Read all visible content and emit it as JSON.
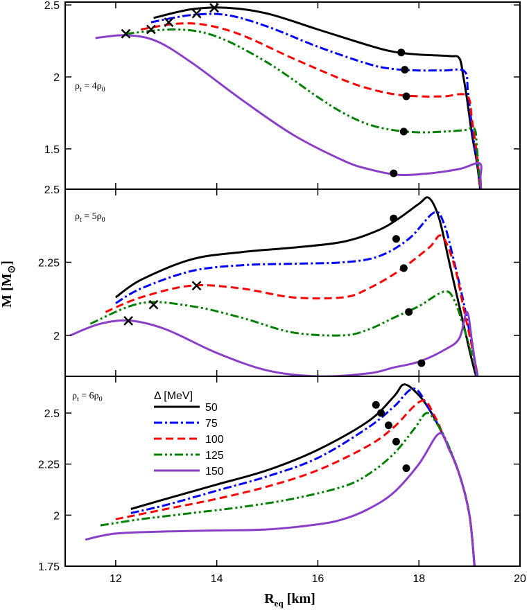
{
  "chart_data": {
    "type": "line",
    "title": "",
    "xlabel": "R",
    "xlabel_sub": "eq",
    "xlabel_unit": " [km]",
    "ylabel": "M [M",
    "ylabel_sub": "⊙",
    "ylabel_close": "]",
    "xlim": [
      11,
      20
    ],
    "xticks": [
      12,
      14,
      16,
      18,
      20
    ],
    "legend": {
      "title": "Δ [MeV]",
      "position": "top-left, bottom panel",
      "entries": [
        {
          "label": "50",
          "color": "#000000",
          "dash": "solid"
        },
        {
          "label": "75",
          "color": "#0000ff",
          "dash": "dash-dot"
        },
        {
          "label": "100",
          "color": "#ff0000",
          "dash": "dashed"
        },
        {
          "label": "125",
          "color": "#008000",
          "dash": "dash-dot-dot"
        },
        {
          "label": "150",
          "color": "#8b3fc8",
          "dash": "solid"
        }
      ]
    },
    "panels": [
      {
        "annotation": {
          "rho": "ρ",
          "sub_t": "t",
          "eq": " = 4ρ",
          "sub_0": "0"
        },
        "ylim": [
          1.22,
          2.52
        ],
        "yticks": [
          {
            "v": 1.5,
            "label": "1.5"
          },
          {
            "v": 2.0,
            "label": "2"
          },
          {
            "v": 2.5,
            "label": "2.5"
          }
        ],
        "series": [
          {
            "name": "50",
            "color": "#000000",
            "dash": "solid",
            "x": [
              12.75,
              13.5,
              14.2,
              15,
              16,
              17,
              17.5,
              18,
              18.6,
              18.8,
              18.88,
              18.95,
              19.05,
              19.15,
              19.22
            ],
            "y": [
              2.41,
              2.47,
              2.48,
              2.44,
              2.33,
              2.22,
              2.175,
              2.155,
              2.145,
              2.13,
              2.0,
              1.85,
              1.6,
              1.4,
              1.2
            ]
          },
          {
            "name": "75",
            "color": "#0000ff",
            "dash": "dash-dot",
            "x": [
              12.7,
              13.5,
              14.2,
              15,
              16,
              17,
              17.5,
              18,
              18.5,
              18.9,
              18.97,
              19.05,
              19.15,
              19.22
            ],
            "y": [
              2.38,
              2.43,
              2.43,
              2.35,
              2.21,
              2.09,
              2.055,
              2.045,
              2.045,
              2.04,
              1.9,
              1.65,
              1.4,
              1.2
            ]
          },
          {
            "name": "100",
            "color": "#ff0000",
            "dash": "dashed",
            "x": [
              12.5,
              13.2,
              13.8,
              14.5,
              15.5,
              16.5,
              17,
              17.5,
              18,
              18.5,
              18.95,
              19.05,
              19.15,
              19.22
            ],
            "y": [
              2.33,
              2.37,
              2.36,
              2.29,
              2.13,
              1.98,
              1.92,
              1.88,
              1.865,
              1.865,
              1.87,
              1.7,
              1.45,
              1.2
            ]
          },
          {
            "name": "125",
            "color": "#008000",
            "dash": "dash-dot-dot",
            "x": [
              12.2,
              13.2,
              14,
              15,
              16,
              16.5,
              17,
              17.5,
              18,
              18.5,
              18.9,
              19.1,
              19.15,
              19.22
            ],
            "y": [
              2.3,
              2.33,
              2.28,
              2.1,
              1.86,
              1.75,
              1.67,
              1.63,
              1.615,
              1.62,
              1.63,
              1.64,
              1.5,
              1.2
            ]
          },
          {
            "name": "150",
            "color": "#8b3fc8",
            "dash": "solid",
            "x": [
              11.6,
              12.2,
              12.8,
              13.5,
              14.5,
              15.5,
              16.5,
              17,
              17.6,
              18.2,
              18.8,
              19.2,
              19.22,
              19.23
            ],
            "y": [
              2.27,
              2.29,
              2.25,
              2.1,
              1.84,
              1.6,
              1.42,
              1.36,
              1.32,
              1.33,
              1.36,
              1.4,
              1.3,
              1.2
            ]
          }
        ],
        "crosses": [
          {
            "x": 12.2,
            "y": 2.3
          },
          {
            "x": 12.7,
            "y": 2.33
          },
          {
            "x": 13.05,
            "y": 2.38
          },
          {
            "x": 13.6,
            "y": 2.44
          },
          {
            "x": 13.95,
            "y": 2.48
          }
        ],
        "dots": [
          {
            "x": 17.65,
            "y": 2.17
          },
          {
            "x": 17.72,
            "y": 2.05
          },
          {
            "x": 17.75,
            "y": 1.865
          },
          {
            "x": 17.7,
            "y": 1.62
          },
          {
            "x": 17.5,
            "y": 1.33
          }
        ]
      },
      {
        "annotation": {
          "rho": "ρ",
          "sub_t": "t",
          "eq": " = 5ρ",
          "sub_0": "0"
        },
        "ylim": [
          1.86,
          2.5
        ],
        "yticks": [
          {
            "v": 2.0,
            "label": "2"
          },
          {
            "v": 2.25,
            "label": "2.25"
          },
          {
            "v": 2.5,
            "label": "2.5"
          }
        ],
        "series": [
          {
            "name": "50",
            "color": "#000000",
            "dash": "solid",
            "x": [
              12.0,
              12.5,
              13.5,
              14.5,
              15.5,
              16.5,
              17.2,
              17.6,
              18.0,
              18.2,
              18.4,
              18.6,
              18.8,
              19.0,
              19.1,
              19.2
            ],
            "y": [
              2.13,
              2.19,
              2.26,
              2.285,
              2.3,
              2.32,
              2.36,
              2.4,
              2.45,
              2.47,
              2.4,
              2.25,
              2.1,
              1.95,
              1.88,
              1.82
            ]
          },
          {
            "name": "75",
            "color": "#0000ff",
            "dash": "dash-dot",
            "x": [
              12.0,
              12.5,
              13.5,
              14.5,
              15.5,
              16.5,
              17.2,
              17.8,
              18.3,
              18.5,
              18.7,
              18.9,
              19.1,
              19.2
            ],
            "y": [
              2.11,
              2.16,
              2.22,
              2.24,
              2.245,
              2.25,
              2.27,
              2.33,
              2.42,
              2.38,
              2.25,
              2.1,
              1.92,
              1.82
            ]
          },
          {
            "name": "100",
            "color": "#ff0000",
            "dash": "dashed",
            "x": [
              11.8,
              12.5,
              13.5,
              14.5,
              15.5,
              16.5,
              17,
              17.6,
              18.2,
              18.45,
              18.7,
              18.9,
              19.1,
              19.2
            ],
            "y": [
              2.08,
              2.13,
              2.17,
              2.16,
              2.13,
              2.13,
              2.16,
              2.22,
              2.3,
              2.34,
              2.24,
              2.08,
              1.92,
              1.82
            ]
          },
          {
            "name": "125",
            "color": "#008000",
            "dash": "dash-dot-dot",
            "x": [
              11.5,
              12.5,
              13.5,
              14.5,
              15.5,
              16.5,
              17,
              17.5,
              18,
              18.5,
              18.7,
              18.9,
              19.1,
              19.2
            ],
            "y": [
              2.04,
              2.11,
              2.1,
              2.06,
              2.01,
              2.0,
              2.02,
              2.06,
              2.1,
              2.15,
              2.12,
              2.02,
              1.9,
              1.82
            ]
          },
          {
            "name": "150",
            "color": "#8b3fc8",
            "dash": "solid",
            "x": [
              11.1,
              11.7,
              12.3,
              13,
              14,
              15,
              16,
              17,
              17.5,
              18,
              18.5,
              18.8,
              18.95,
              19.05,
              19.15,
              19.2
            ],
            "y": [
              2.0,
              2.04,
              2.05,
              2.02,
              1.94,
              1.88,
              1.86,
              1.87,
              1.89,
              1.91,
              1.95,
              1.99,
              2.08,
              1.98,
              1.86,
              1.82
            ]
          }
        ],
        "crosses": [
          {
            "x": 12.25,
            "y": 2.05
          },
          {
            "x": 12.75,
            "y": 2.105
          },
          {
            "x": 13.6,
            "y": 2.17
          }
        ],
        "dots": [
          {
            "x": 17.5,
            "y": 2.4
          },
          {
            "x": 17.55,
            "y": 2.33
          },
          {
            "x": 17.7,
            "y": 2.23
          },
          {
            "x": 17.8,
            "y": 2.08
          },
          {
            "x": 18.05,
            "y": 1.905
          }
        ]
      },
      {
        "annotation": {
          "rho": "ρ",
          "sub_t": "t",
          "eq": " = 6ρ",
          "sub_0": "0"
        },
        "ylim": [
          1.75,
          2.68
        ],
        "yticks": [
          {
            "v": 1.75,
            "label": "1.75"
          },
          {
            "v": 2.0,
            "label": "2"
          },
          {
            "v": 2.25,
            "label": "2.25"
          },
          {
            "v": 2.5,
            "label": "2.5"
          }
        ],
        "series": [
          {
            "name": "50",
            "color": "#000000",
            "dash": "solid",
            "x": [
              12.3,
              13,
              14,
              15,
              16,
              17,
              17.5,
              17.7,
              17.95,
              18.2,
              18.5,
              18.8,
              19.0,
              19.1
            ],
            "y": [
              2.03,
              2.08,
              2.15,
              2.22,
              2.32,
              2.46,
              2.58,
              2.64,
              2.6,
              2.52,
              2.38,
              2.2,
              2.0,
              1.75
            ]
          },
          {
            "name": "75",
            "color": "#0000ff",
            "dash": "dash-dot",
            "x": [
              12.3,
              13,
              14,
              15,
              16,
              17,
              17.5,
              17.9,
              18.2,
              18.5,
              18.8,
              19.0,
              19.1
            ],
            "y": [
              2.01,
              2.05,
              2.12,
              2.19,
              2.28,
              2.43,
              2.53,
              2.62,
              2.52,
              2.38,
              2.2,
              2.0,
              1.75
            ]
          },
          {
            "name": "100",
            "color": "#ff0000",
            "dash": "dashed",
            "x": [
              12.0,
              13,
              14,
              15,
              16,
              17,
              17.5,
              18.05,
              18.3,
              18.5,
              18.8,
              19.0,
              19.1
            ],
            "y": [
              1.98,
              2.03,
              2.08,
              2.14,
              2.22,
              2.34,
              2.43,
              2.56,
              2.49,
              2.38,
              2.2,
              2.0,
              1.75
            ]
          },
          {
            "name": "125",
            "color": "#008000",
            "dash": "dash-dot-dot",
            "x": [
              11.7,
              12.5,
              13.5,
              14.5,
              15.5,
              16.5,
              17,
              17.5,
              17.9,
              18.15,
              18.35,
              18.55,
              18.8,
              19.0,
              19.1
            ],
            "y": [
              1.95,
              1.98,
              2.01,
              2.04,
              2.08,
              2.14,
              2.2,
              2.3,
              2.42,
              2.5,
              2.45,
              2.36,
              2.2,
              2.0,
              1.75
            ]
          },
          {
            "name": "150",
            "color": "#8b3fc8",
            "dash": "solid",
            "x": [
              11.4,
              12,
              13,
              14,
              15,
              16,
              16.5,
              17,
              17.5,
              18,
              18.4,
              18.6,
              18.8,
              19.0,
              19.1
            ],
            "y": [
              1.88,
              1.91,
              1.92,
              1.925,
              1.93,
              1.955,
              1.98,
              2.03,
              2.11,
              2.25,
              2.4,
              2.32,
              2.2,
              2.0,
              1.75
            ]
          }
        ],
        "crosses": [],
        "dots": [
          {
            "x": 17.15,
            "y": 2.54
          },
          {
            "x": 17.25,
            "y": 2.5
          },
          {
            "x": 17.4,
            "y": 2.44
          },
          {
            "x": 17.55,
            "y": 2.36
          },
          {
            "x": 17.75,
            "y": 2.23
          }
        ]
      }
    ]
  }
}
